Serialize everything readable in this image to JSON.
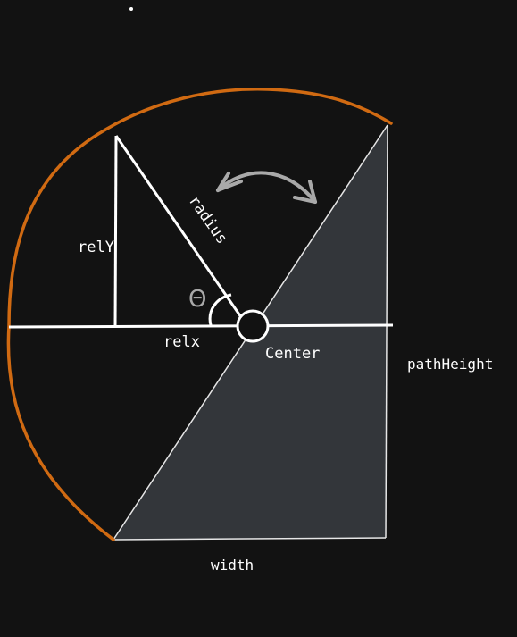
{
  "labels": {
    "rel_y": "relY",
    "rel_x": "relx",
    "radius": "radius",
    "theta": "Θ",
    "center": "Center",
    "path_height": "pathHeight",
    "width": "width"
  },
  "colors": {
    "background": "#121212",
    "arc": "#d06a12",
    "lines": "#ffffff",
    "shaded_region": "#33363a",
    "theta_label": "#a9a9a9",
    "swing_arrow": "#a9a9a9"
  }
}
